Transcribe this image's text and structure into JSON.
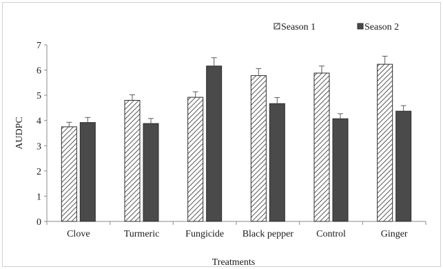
{
  "chart_data": {
    "type": "bar",
    "title": "",
    "xlabel": "Treatments",
    "ylabel": "AUDPC",
    "ylim": [
      0,
      7
    ],
    "yticks": [
      0,
      1,
      2,
      3,
      4,
      5,
      6,
      7
    ],
    "categories": [
      "Clove",
      "Turmeric",
      "Fungicide",
      "Black pepper",
      "Control",
      "Ginger"
    ],
    "series": [
      {
        "name": "Season 1",
        "pattern": "diagonal-hatch",
        "color": "#2b2b2b",
        "values": [
          3.75,
          4.8,
          4.92,
          5.78,
          5.88,
          6.23
        ],
        "errors": [
          0.18,
          0.22,
          0.22,
          0.28,
          0.28,
          0.32
        ]
      },
      {
        "name": "Season 2",
        "pattern": "solid",
        "color": "#4a4a4a",
        "values": [
          3.92,
          3.88,
          6.16,
          4.67,
          4.07,
          4.37
        ],
        "errors": [
          0.2,
          0.2,
          0.33,
          0.24,
          0.2,
          0.22
        ]
      }
    ],
    "legend_position": "top-right",
    "grid": false
  }
}
